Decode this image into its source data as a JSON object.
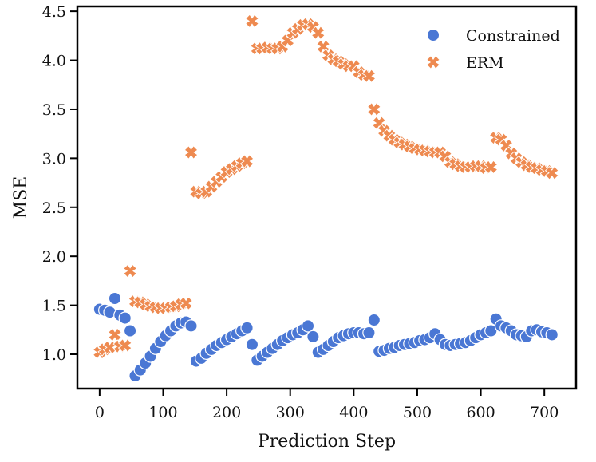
{
  "chart_data": {
    "type": "scatter",
    "xlabel": "Prediction Step",
    "ylabel": "MSE",
    "xlim": [
      -35,
      750
    ],
    "ylim": [
      0.65,
      4.55
    ],
    "xticks": [
      0,
      100,
      200,
      300,
      400,
      500,
      600,
      700
    ],
    "yticks": [
      1.0,
      1.5,
      2.0,
      2.5,
      3.0,
      3.5,
      4.0,
      4.5
    ],
    "grid": false,
    "legend_position": "top-right",
    "series": [
      {
        "name": "Constrained",
        "marker": "circle",
        "color": "#4a77d4",
        "x": [
          0,
          8,
          16,
          24,
          32,
          40,
          48,
          56,
          64,
          72,
          80,
          88,
          96,
          104,
          112,
          120,
          128,
          136,
          144,
          152,
          160,
          168,
          176,
          184,
          192,
          200,
          208,
          216,
          224,
          232,
          240,
          248,
          256,
          264,
          272,
          280,
          288,
          296,
          304,
          312,
          320,
          328,
          336,
          344,
          352,
          360,
          368,
          376,
          384,
          392,
          400,
          408,
          416,
          424,
          432,
          440,
          448,
          456,
          464,
          472,
          480,
          488,
          496,
          504,
          512,
          520,
          528,
          536,
          544,
          552,
          560,
          568,
          576,
          584,
          592,
          600,
          608,
          616,
          624,
          632,
          640,
          648,
          656,
          664,
          672,
          680,
          688,
          696,
          704,
          712
        ],
        "y": [
          1.46,
          1.45,
          1.43,
          1.57,
          1.4,
          1.37,
          1.24,
          0.78,
          0.84,
          0.91,
          0.98,
          1.06,
          1.13,
          1.19,
          1.24,
          1.29,
          1.32,
          1.33,
          1.29,
          0.93,
          0.96,
          1.01,
          1.05,
          1.09,
          1.12,
          1.15,
          1.18,
          1.21,
          1.24,
          1.27,
          1.1,
          0.94,
          0.98,
          1.02,
          1.06,
          1.1,
          1.14,
          1.17,
          1.2,
          1.22,
          1.25,
          1.29,
          1.18,
          1.02,
          1.05,
          1.09,
          1.13,
          1.17,
          1.19,
          1.21,
          1.22,
          1.22,
          1.21,
          1.22,
          1.35,
          1.03,
          1.04,
          1.06,
          1.07,
          1.09,
          1.1,
          1.11,
          1.12,
          1.14,
          1.15,
          1.17,
          1.21,
          1.15,
          1.1,
          1.09,
          1.1,
          1.11,
          1.12,
          1.14,
          1.17,
          1.2,
          1.22,
          1.24,
          1.36,
          1.29,
          1.27,
          1.24,
          1.2,
          1.19,
          1.18,
          1.24,
          1.25,
          1.23,
          1.22,
          1.2
        ]
      },
      {
        "name": "ERM",
        "marker": "x",
        "color": "#ee8a50",
        "x": [
          0,
          8,
          16,
          24,
          32,
          40,
          48,
          56,
          64,
          72,
          80,
          88,
          96,
          104,
          112,
          120,
          128,
          136,
          144,
          152,
          160,
          168,
          176,
          184,
          192,
          200,
          208,
          216,
          224,
          232,
          240,
          248,
          256,
          264,
          272,
          280,
          288,
          296,
          304,
          312,
          320,
          328,
          336,
          344,
          352,
          360,
          368,
          376,
          384,
          392,
          400,
          408,
          416,
          424,
          432,
          440,
          448,
          456,
          464,
          472,
          480,
          488,
          496,
          504,
          512,
          520,
          528,
          536,
          544,
          552,
          560,
          568,
          576,
          584,
          592,
          600,
          608,
          616,
          624,
          632,
          640,
          648,
          656,
          664,
          672,
          680,
          688,
          696,
          704,
          712
        ],
        "y": [
          1.02,
          1.05,
          1.07,
          1.2,
          1.08,
          1.09,
          1.85,
          1.54,
          1.53,
          1.51,
          1.49,
          1.48,
          1.47,
          1.47,
          1.48,
          1.49,
          1.51,
          1.52,
          3.06,
          2.66,
          2.64,
          2.66,
          2.71,
          2.76,
          2.81,
          2.86,
          2.89,
          2.92,
          2.95,
          2.97,
          4.4,
          4.12,
          4.12,
          4.13,
          4.12,
          4.12,
          4.14,
          4.2,
          4.28,
          4.32,
          4.36,
          4.37,
          4.34,
          4.28,
          4.14,
          4.05,
          4.01,
          3.99,
          3.96,
          3.94,
          3.94,
          3.88,
          3.85,
          3.84,
          3.5,
          3.36,
          3.28,
          3.23,
          3.19,
          3.16,
          3.14,
          3.12,
          3.1,
          3.09,
          3.08,
          3.07,
          3.06,
          3.06,
          3.02,
          2.96,
          2.94,
          2.92,
          2.91,
          2.91,
          2.92,
          2.92,
          2.9,
          2.91,
          3.21,
          3.19,
          3.13,
          3.05,
          3.0,
          2.96,
          2.93,
          2.91,
          2.9,
          2.88,
          2.87,
          2.85
        ]
      }
    ]
  }
}
